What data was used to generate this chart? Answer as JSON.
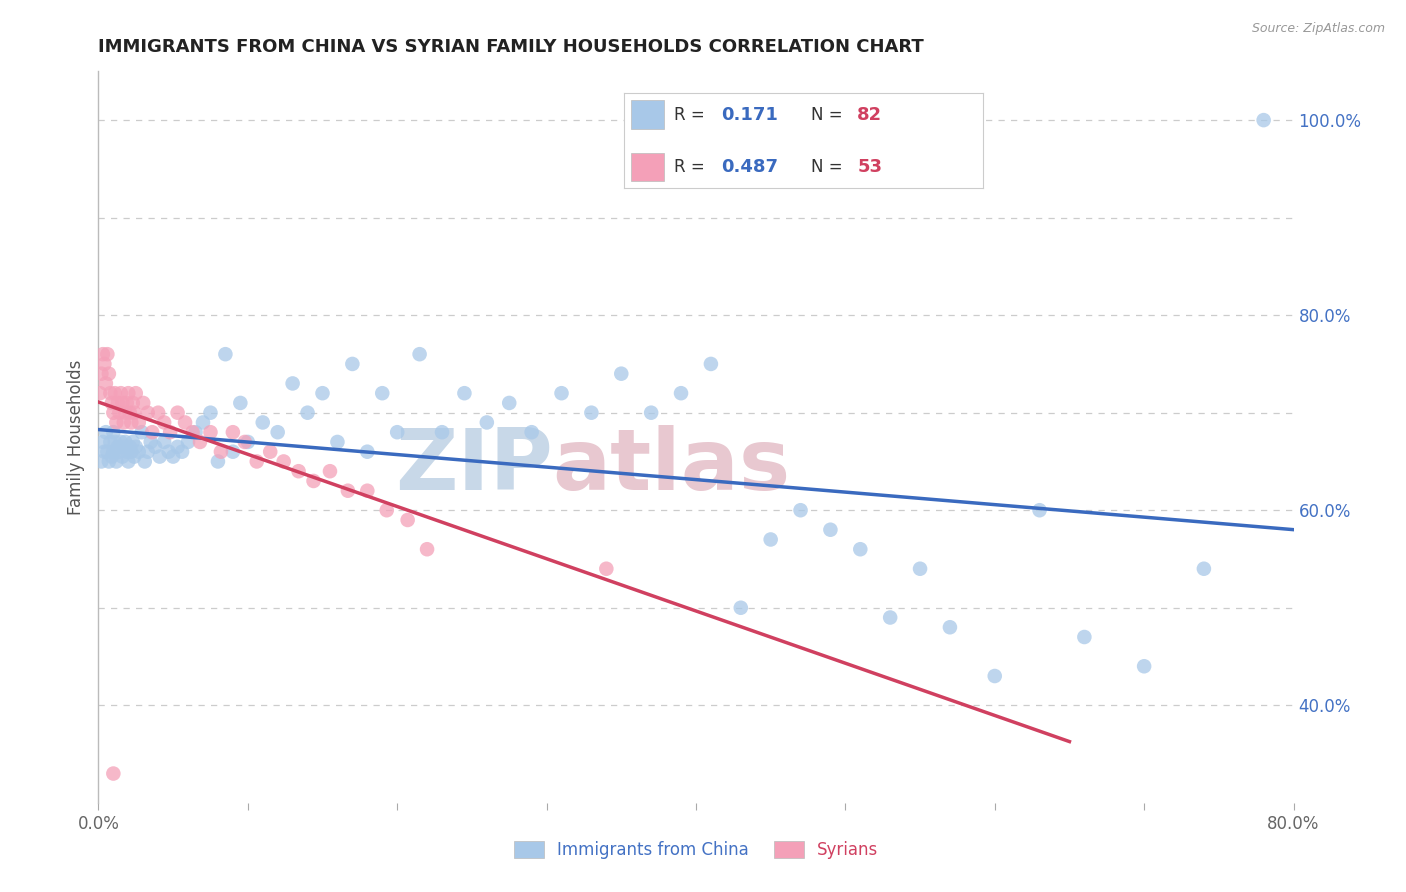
{
  "title": "IMMIGRANTS FROM CHINA VS SYRIAN FAMILY HOUSEHOLDS CORRELATION CHART",
  "source": "Source: ZipAtlas.com",
  "ylabel": "Family Households",
  "xlim": [
    0.0,
    0.8
  ],
  "ylim": [
    0.3,
    1.05
  ],
  "color_china": "#a8c8e8",
  "color_syria": "#f4a0b8",
  "line_color_china": "#3a6abf",
  "line_color_syria": "#d04060",
  "R_china": 0.171,
  "N_china": 82,
  "R_syria": 0.487,
  "N_syria": 53,
  "background_color": "#ffffff",
  "grid_color": "#cccccc",
  "ytick_vals": [
    0.4,
    0.5,
    0.6,
    0.7,
    0.8,
    0.9,
    1.0
  ],
  "ytick_labels_right": [
    "40.0%",
    "",
    "60.0%",
    "",
    "80.0%",
    "",
    "100.0%"
  ],
  "xtick_vals": [
    0.0,
    0.1,
    0.2,
    0.3,
    0.4,
    0.5,
    0.6,
    0.7,
    0.8
  ],
  "xtick_labels": [
    "0.0%",
    "",
    "",
    "",
    "",
    "",
    "",
    "",
    "80.0%"
  ],
  "china_x": [
    0.002,
    0.003,
    0.004,
    0.005,
    0.006,
    0.007,
    0.008,
    0.009,
    0.01,
    0.01,
    0.011,
    0.012,
    0.013,
    0.014,
    0.015,
    0.016,
    0.017,
    0.018,
    0.019,
    0.02,
    0.021,
    0.022,
    0.023,
    0.024,
    0.025,
    0.027,
    0.029,
    0.031,
    0.033,
    0.035,
    0.038,
    0.041,
    0.044,
    0.047,
    0.05,
    0.053,
    0.056,
    0.06,
    0.065,
    0.07,
    0.075,
    0.08,
    0.085,
    0.09,
    0.095,
    0.1,
    0.11,
    0.12,
    0.13,
    0.14,
    0.15,
    0.16,
    0.17,
    0.18,
    0.19,
    0.2,
    0.215,
    0.23,
    0.245,
    0.26,
    0.275,
    0.29,
    0.31,
    0.33,
    0.35,
    0.37,
    0.39,
    0.41,
    0.43,
    0.45,
    0.47,
    0.49,
    0.51,
    0.53,
    0.55,
    0.57,
    0.6,
    0.63,
    0.66,
    0.7,
    0.74,
    0.78
  ],
  "china_y": [
    0.65,
    0.67,
    0.66,
    0.68,
    0.66,
    0.65,
    0.67,
    0.655,
    0.66,
    0.68,
    0.67,
    0.65,
    0.665,
    0.66,
    0.67,
    0.655,
    0.665,
    0.67,
    0.66,
    0.65,
    0.665,
    0.66,
    0.67,
    0.655,
    0.665,
    0.66,
    0.68,
    0.65,
    0.66,
    0.67,
    0.665,
    0.655,
    0.67,
    0.66,
    0.655,
    0.665,
    0.66,
    0.67,
    0.68,
    0.69,
    0.7,
    0.65,
    0.76,
    0.66,
    0.71,
    0.67,
    0.69,
    0.68,
    0.73,
    0.7,
    0.72,
    0.67,
    0.75,
    0.66,
    0.72,
    0.68,
    0.76,
    0.68,
    0.72,
    0.69,
    0.71,
    0.68,
    0.72,
    0.7,
    0.74,
    0.7,
    0.72,
    0.75,
    0.5,
    0.57,
    0.6,
    0.58,
    0.56,
    0.49,
    0.54,
    0.48,
    0.43,
    0.6,
    0.47,
    0.44,
    0.54,
    1.0
  ],
  "syria_x": [
    0.001,
    0.002,
    0.003,
    0.004,
    0.005,
    0.006,
    0.007,
    0.008,
    0.009,
    0.01,
    0.011,
    0.012,
    0.013,
    0.014,
    0.015,
    0.016,
    0.017,
    0.018,
    0.019,
    0.02,
    0.021,
    0.022,
    0.023,
    0.024,
    0.025,
    0.027,
    0.03,
    0.033,
    0.036,
    0.04,
    0.044,
    0.048,
    0.053,
    0.058,
    0.063,
    0.068,
    0.075,
    0.082,
    0.09,
    0.098,
    0.106,
    0.115,
    0.124,
    0.134,
    0.144,
    0.155,
    0.167,
    0.18,
    0.193,
    0.207,
    0.22,
    0.34,
    0.01
  ],
  "syria_y": [
    0.72,
    0.74,
    0.76,
    0.75,
    0.73,
    0.76,
    0.74,
    0.72,
    0.71,
    0.7,
    0.72,
    0.69,
    0.71,
    0.7,
    0.72,
    0.71,
    0.69,
    0.7,
    0.71,
    0.72,
    0.7,
    0.69,
    0.71,
    0.7,
    0.72,
    0.69,
    0.71,
    0.7,
    0.68,
    0.7,
    0.69,
    0.68,
    0.7,
    0.69,
    0.68,
    0.67,
    0.68,
    0.66,
    0.68,
    0.67,
    0.65,
    0.66,
    0.65,
    0.64,
    0.63,
    0.64,
    0.62,
    0.62,
    0.6,
    0.59,
    0.56,
    0.54,
    0.33
  ],
  "wm_zip_color": "#c8d8e8",
  "wm_atlas_color": "#e8c8d0",
  "legend_R_color": "#3a6abf",
  "legend_N_color": "#d04060",
  "legend_text_color": "#333333"
}
